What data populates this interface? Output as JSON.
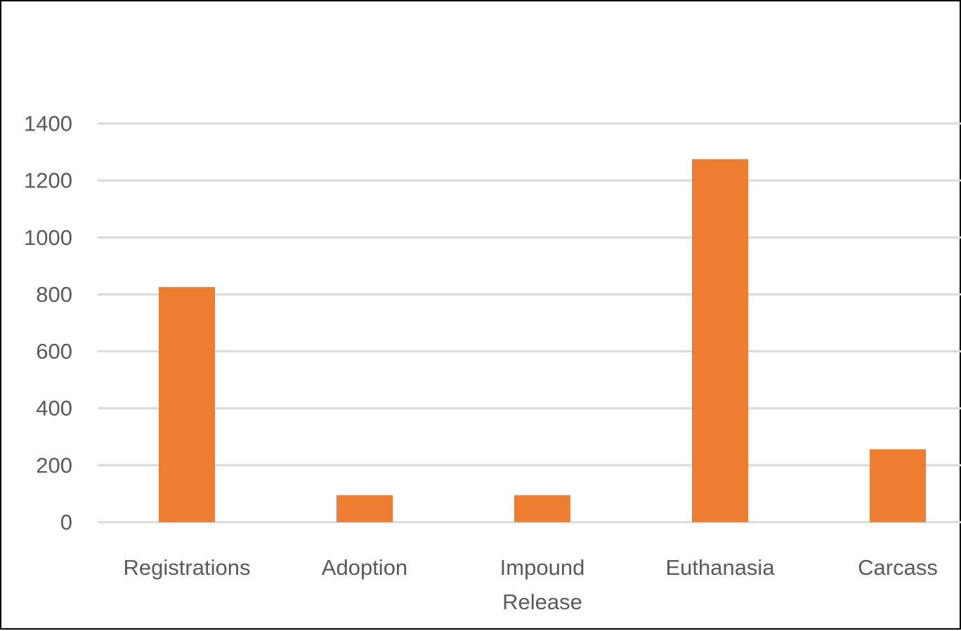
{
  "chart_data": {
    "type": "bar",
    "title": "",
    "xlabel": "",
    "ylabel": "",
    "categories": [
      [
        "Registrations"
      ],
      [
        "Adoption"
      ],
      [
        "Impound",
        "Release"
      ],
      [
        "Euthanasia"
      ],
      [
        "Carcass"
      ]
    ],
    "values": [
      826,
      95,
      95,
      1275,
      256
    ],
    "ylim": [
      0,
      1400
    ],
    "yticks": [
      0,
      200,
      400,
      600,
      800,
      1000,
      1200,
      1400
    ],
    "grid": true,
    "legend": "none",
    "bar_color": "#ed7d31",
    "grid_color": "#d9d9d9",
    "text_color": "#595959"
  }
}
